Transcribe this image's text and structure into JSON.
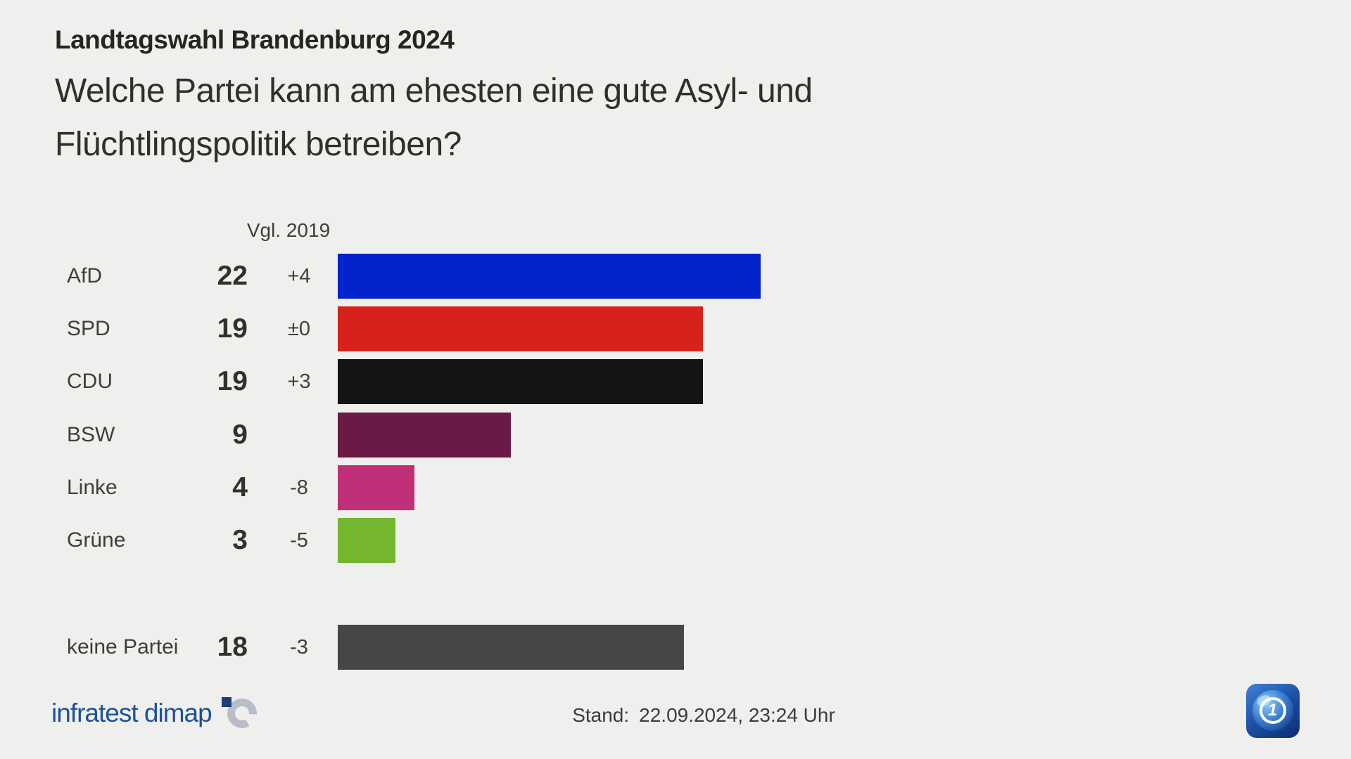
{
  "header": {
    "kicker": "Landtagswahl Brandenburg 2024",
    "question": "Welche Partei kann am ehesten eine gute Asyl- und Flüchtlingspolitik betreiben?"
  },
  "chart_data": {
    "type": "bar",
    "orientation": "horizontal",
    "title": "Welche Partei kann am ehesten eine gute Asyl- und Flüchtlingspolitik betreiben?",
    "subtitle": "Landtagswahl Brandenburg 2024",
    "comparison_label": "Vgl. 2019",
    "unit": "percentage points",
    "xlim": [
      0,
      26
    ],
    "grid": false,
    "categories": [
      "AfD",
      "SPD",
      "CDU",
      "BSW",
      "Linke",
      "Grüne",
      "keine Partei"
    ],
    "values": [
      22,
      19,
      19,
      9,
      4,
      3,
      18
    ],
    "rows": [
      {
        "label": "AfD",
        "value": 22,
        "value_text": "22",
        "vgl": "+4",
        "color": "#0423cb",
        "separated": false
      },
      {
        "label": "SPD",
        "value": 19,
        "value_text": "19",
        "vgl": "±0",
        "color": "#d6211c",
        "separated": false
      },
      {
        "label": "CDU",
        "value": 19,
        "value_text": "19",
        "vgl": "+3",
        "color": "#141414",
        "separated": false
      },
      {
        "label": "BSW",
        "value": 9,
        "value_text": "9",
        "vgl": "",
        "color": "#6a1a45",
        "separated": false
      },
      {
        "label": "Linke",
        "value": 4,
        "value_text": "4",
        "vgl": "-8",
        "color": "#bf3078",
        "separated": false
      },
      {
        "label": "Grüne",
        "value": 3,
        "value_text": "3",
        "vgl": "-5",
        "color": "#74b62d",
        "separated": false
      },
      {
        "label": "keine Partei",
        "value": 18,
        "value_text": "18",
        "vgl": "-3",
        "color": "#464646",
        "separated": true
      }
    ]
  },
  "footer": {
    "source_logo_text": "infratest dimap",
    "stand_label": "Stand:",
    "stand_value": "22.09.2024, 23:24 Uhr",
    "ard_logo_number": "1"
  },
  "colors": {
    "background": "#efefed",
    "text_primary": "#30302a",
    "text_secondary": "#3f3f3a",
    "logo_blue": "#1d5296"
  }
}
